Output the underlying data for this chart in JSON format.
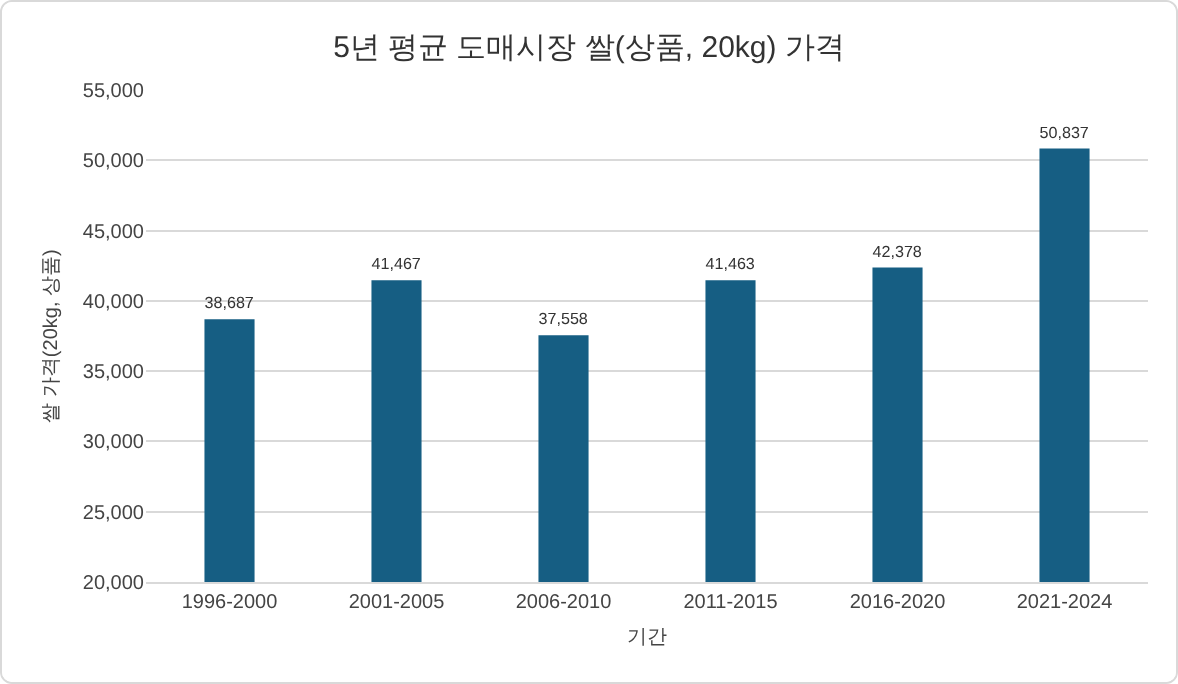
{
  "chart_data": {
    "type": "bar",
    "title": "5년 평균 도매시장 쌀(상품, 20kg) 가격",
    "xlabel": "기간",
    "ylabel": "쌀 가격(20kg, 상품)",
    "categories": [
      "1996-2000",
      "2001-2005",
      "2006-2010",
      "2011-2015",
      "2016-2020",
      "2021-2024"
    ],
    "values": [
      38687,
      41467,
      37558,
      41463,
      42378,
      50837
    ],
    "value_labels": [
      "38,687",
      "41,467",
      "37,558",
      "41,463",
      "42,378",
      "50,837"
    ],
    "color": "#165e83",
    "ylim": [
      20000,
      55000
    ],
    "yticks": [
      {
        "value": 20000,
        "label": "20,000"
      },
      {
        "value": 25000,
        "label": "25,000"
      },
      {
        "value": 30000,
        "label": "30,000"
      },
      {
        "value": 35000,
        "label": "35,000"
      },
      {
        "value": 40000,
        "label": "40,000"
      },
      {
        "value": 45000,
        "label": "45,000"
      },
      {
        "value": 50000,
        "label": "50,000"
      },
      {
        "value": 55000,
        "label": "55,000"
      }
    ],
    "grid": "y"
  }
}
